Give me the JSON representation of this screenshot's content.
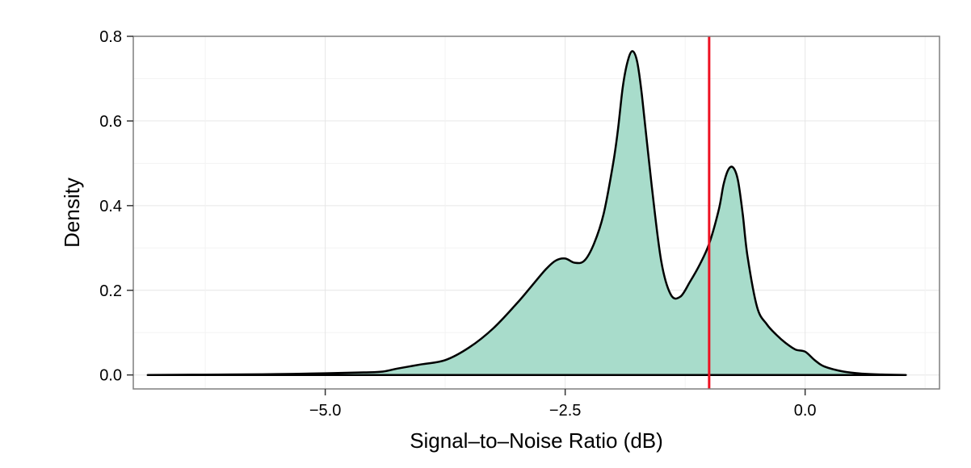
{
  "chart_data": {
    "type": "area",
    "title": "",
    "xlabel": "Signal–to–Noise Ratio (dB)",
    "ylabel": "Density",
    "xlim": [
      -7.0,
      1.4
    ],
    "ylim": [
      -0.033,
      0.8
    ],
    "x_ticks": [
      -5.0,
      -2.5,
      0.0
    ],
    "x_tick_labels": [
      "−5.0",
      "−2.5",
      "0.0"
    ],
    "y_ticks": [
      0.0,
      0.2,
      0.4,
      0.6,
      0.8
    ],
    "y_tick_labels": [
      "0.0",
      "0.2",
      "0.4",
      "0.6",
      "0.8"
    ],
    "grid": true,
    "reference_line": {
      "x": -1.0,
      "color": "#ee1122"
    },
    "colors": {
      "fill": "#a8dccb",
      "line": "#000000"
    },
    "series": [
      {
        "x": [
          -6.85,
          -6.0,
          -5.5,
          -5.0,
          -4.6,
          -4.4,
          -4.25,
          -4.0,
          -3.75,
          -3.5,
          -3.25,
          -3.0,
          -2.85,
          -2.7,
          -2.6,
          -2.5,
          -2.4,
          -2.3,
          -2.2,
          -2.1,
          -2.0,
          -1.95,
          -1.9,
          -1.85,
          -1.8,
          -1.75,
          -1.7,
          -1.6,
          -1.5,
          -1.4,
          -1.3,
          -1.2,
          -1.1,
          -1.0,
          -0.9,
          -0.85,
          -0.8,
          -0.75,
          -0.7,
          -0.65,
          -0.6,
          -0.5,
          -0.4,
          -0.3,
          -0.2,
          -0.1,
          0.0,
          0.1,
          0.2,
          0.4,
          0.6,
          0.8,
          1.05
        ],
        "y": [
          0.0,
          0.001,
          0.002,
          0.004,
          0.006,
          0.008,
          0.015,
          0.025,
          0.035,
          0.065,
          0.11,
          0.17,
          0.21,
          0.25,
          0.27,
          0.275,
          0.265,
          0.27,
          0.31,
          0.38,
          0.5,
          0.58,
          0.68,
          0.74,
          0.765,
          0.74,
          0.66,
          0.45,
          0.27,
          0.19,
          0.185,
          0.22,
          0.26,
          0.31,
          0.39,
          0.45,
          0.485,
          0.49,
          0.46,
          0.38,
          0.28,
          0.16,
          0.12,
          0.095,
          0.075,
          0.06,
          0.055,
          0.035,
          0.02,
          0.008,
          0.003,
          0.001,
          0.0
        ]
      }
    ]
  }
}
